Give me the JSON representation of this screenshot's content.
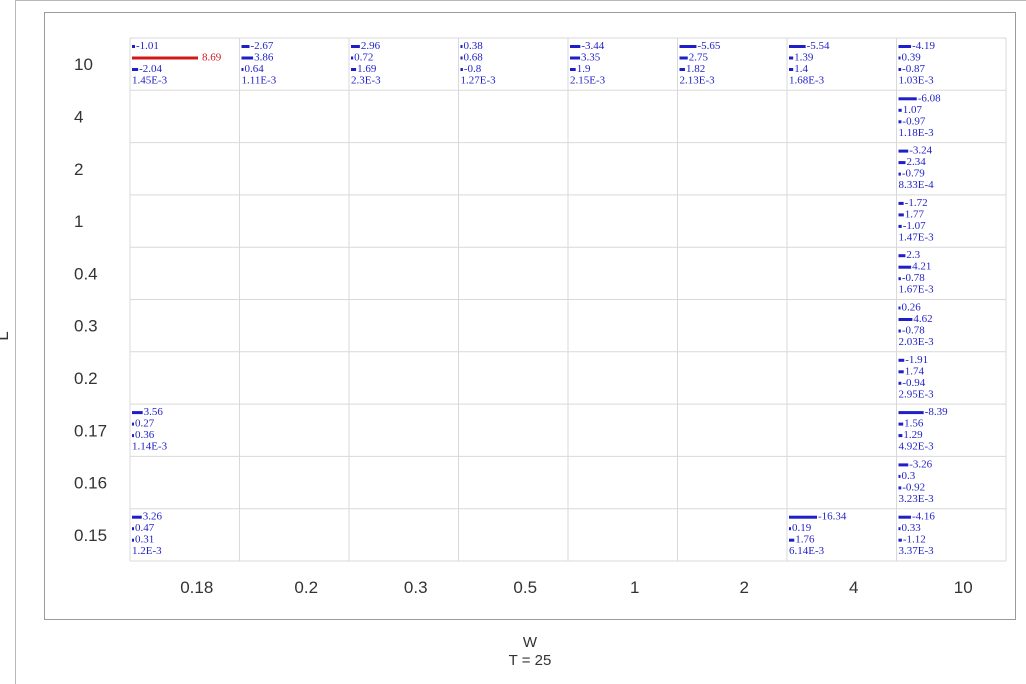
{
  "chart_data": {
    "type": "table",
    "xlabel": "W",
    "ylabel": "L",
    "footer": "T = 25",
    "x_categories": [
      "0.18",
      "0.2",
      "0.3",
      "0.5",
      "1",
      "2",
      "4",
      "10"
    ],
    "y_categories": [
      "10",
      "4",
      "2",
      "1",
      "0.4",
      "0.3",
      "0.2",
      "0.17",
      "0.16",
      "0.15"
    ],
    "cells": [
      {
        "col": 0,
        "row": 0,
        "values": [
          "-1.01",
          "8.69",
          "-2.04",
          "1.45E-3"
        ],
        "highlight": true
      },
      {
        "col": 1,
        "row": 0,
        "values": [
          "-2.67",
          "3.86",
          "0.64",
          "1.11E-3"
        ]
      },
      {
        "col": 2,
        "row": 0,
        "values": [
          "2.96",
          "0.72",
          "1.69",
          "2.3E-3"
        ]
      },
      {
        "col": 3,
        "row": 0,
        "values": [
          "0.38",
          "0.68",
          "-0.8",
          "1.27E-3"
        ]
      },
      {
        "col": 4,
        "row": 0,
        "values": [
          "-3.44",
          "3.35",
          "1.9",
          "2.15E-3"
        ]
      },
      {
        "col": 5,
        "row": 0,
        "values": [
          "-5.65",
          "2.75",
          "1.82",
          "2.13E-3"
        ]
      },
      {
        "col": 6,
        "row": 0,
        "values": [
          "-5.54",
          "1.39",
          "1.4",
          "1.68E-3"
        ]
      },
      {
        "col": 7,
        "row": 0,
        "values": [
          "-4.19",
          "0.39",
          "-0.87",
          "1.03E-3"
        ]
      },
      {
        "col": 7,
        "row": 1,
        "values": [
          "-6.08",
          "1.07",
          "-0.97",
          "1.18E-3"
        ]
      },
      {
        "col": 7,
        "row": 2,
        "values": [
          "-3.24",
          "2.34",
          "-0.79",
          "8.33E-4"
        ]
      },
      {
        "col": 7,
        "row": 3,
        "values": [
          "-1.72",
          "1.77",
          "-1.07",
          "1.47E-3"
        ]
      },
      {
        "col": 7,
        "row": 4,
        "values": [
          "2.3",
          "4.21",
          "-0.78",
          "1.67E-3"
        ]
      },
      {
        "col": 7,
        "row": 5,
        "values": [
          "0.26",
          "4.62",
          "-0.78",
          "2.03E-3"
        ]
      },
      {
        "col": 7,
        "row": 6,
        "values": [
          "-1.91",
          "1.74",
          "-0.94",
          "2.95E-3"
        ]
      },
      {
        "col": 7,
        "row": 7,
        "values": [
          "-8.39",
          "1.56",
          "1.29",
          "4.92E-3"
        ]
      },
      {
        "col": 7,
        "row": 8,
        "values": [
          "-3.26",
          "0.3",
          "-0.92",
          "3.23E-3"
        ]
      },
      {
        "col": 7,
        "row": 9,
        "values": [
          "-4.16",
          "0.33",
          "-1.12",
          "3.37E-3"
        ]
      },
      {
        "col": 0,
        "row": 7,
        "values": [
          "3.56",
          "0.27",
          "0.36",
          "1.14E-3"
        ]
      },
      {
        "col": 0,
        "row": 9,
        "values": [
          "3.26",
          "0.47",
          "0.31",
          "1.2E-3"
        ]
      },
      {
        "col": 6,
        "row": 9,
        "values": [
          "-16.34",
          "0.19",
          "1.76",
          "6.14E-3"
        ]
      }
    ],
    "grid": true,
    "colors": {
      "text": "#1f1fc8",
      "highlight": "#d01818",
      "grid": "#d9d9d9",
      "axis_text": "#333333"
    }
  }
}
